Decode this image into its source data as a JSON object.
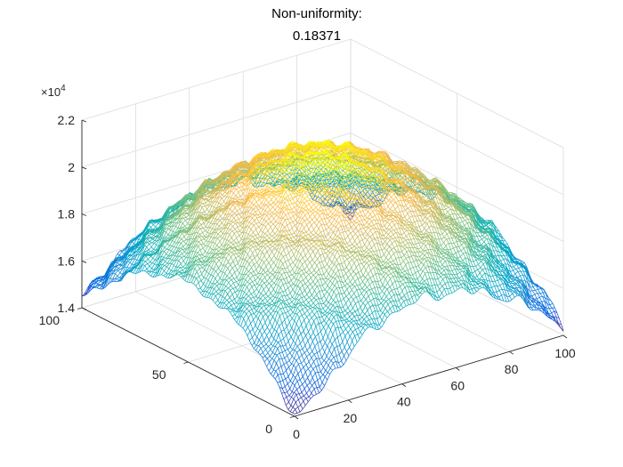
{
  "chart_data": {
    "type": "surface-mesh",
    "title_lines": [
      "Non-uniformity:",
      "0.18371"
    ],
    "x_axis": {
      "ticks": [
        0,
        20,
        40,
        60,
        80,
        100
      ],
      "range": [
        0,
        100
      ]
    },
    "y_axis": {
      "ticks": [
        0,
        50,
        100
      ],
      "range": [
        0,
        100
      ]
    },
    "z_axis": {
      "ticks": [
        1.4,
        1.6,
        1.8,
        2.0,
        2.2
      ],
      "tick_labels": [
        "1.4",
        "1.6",
        "1.8",
        "2",
        "2.2"
      ],
      "range": [
        1.4,
        2.2
      ],
      "exponent_label": "×10",
      "exponent_power": "4"
    },
    "surface": {
      "grid_points": 100,
      "center": [
        50,
        50
      ],
      "peak_value": 2.12,
      "corner_value": 1.44,
      "min_value": 1.41,
      "non_uniformity": 0.18371,
      "colormap": "parula",
      "style": "wireframe"
    },
    "grid": true
  }
}
